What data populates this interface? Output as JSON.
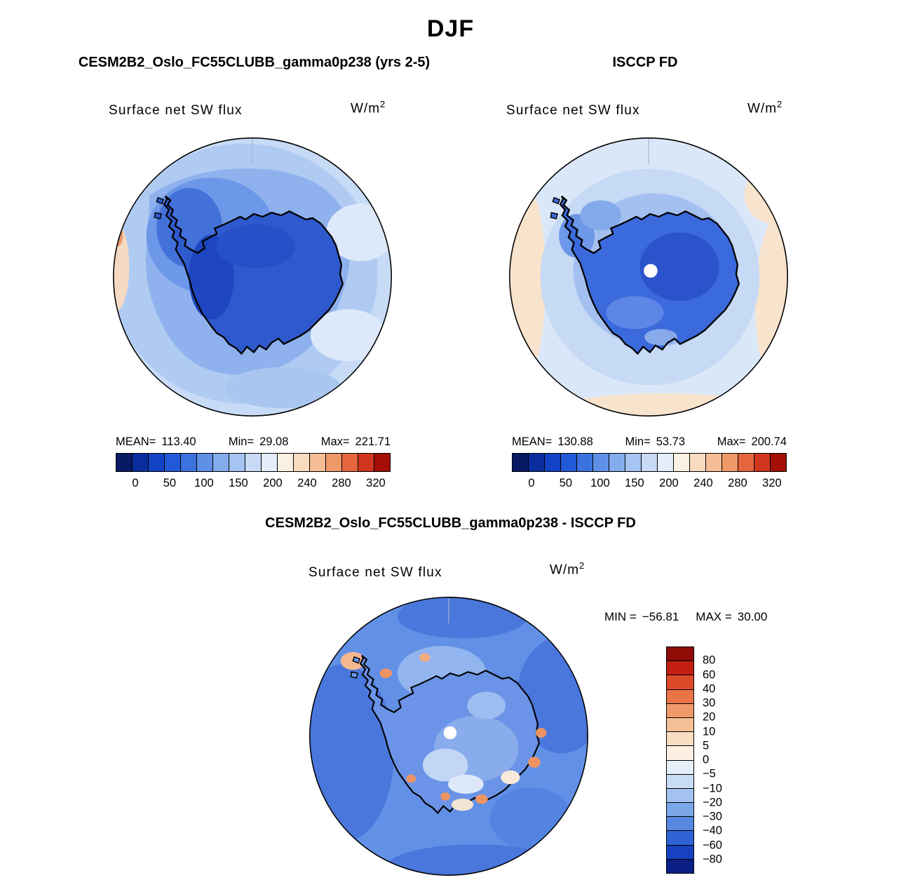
{
  "title": "DJF",
  "panels": [
    {
      "title": "CESM2B2_Oslo_FC55CLUBB_gamma0p238 (yrs 2-5)",
      "field_label": "Surface net SW flux",
      "units_base": "W/m",
      "units_exp": "2",
      "stats": {
        "mean_label": "MEAN=",
        "mean": "113.40",
        "min_label": "Min=",
        "min": "29.08",
        "max_label": "Max=",
        "max": "221.71"
      },
      "ticks": [
        "0",
        "50",
        "100",
        "150",
        "200",
        "240",
        "280",
        "320"
      ]
    },
    {
      "title": "ISCCP FD",
      "field_label": "Surface net SW flux",
      "units_base": "W/m",
      "units_exp": "2",
      "stats": {
        "mean_label": "MEAN=",
        "mean": "130.88",
        "min_label": "Min=",
        "min": "53.73",
        "max_label": "Max=",
        "max": "200.74"
      },
      "ticks": [
        "0",
        "50",
        "100",
        "150",
        "200",
        "240",
        "280",
        "320"
      ]
    }
  ],
  "diff": {
    "title": "CESM2B2_Oslo_FC55CLUBB_gamma0p238 - ISCCP FD",
    "field_label": "Surface net SW flux",
    "units_base": "W/m",
    "units_exp": "2",
    "min_label": "MIN =",
    "min": "−56.81",
    "max_label": "MAX =",
    "max": "30.00",
    "labels": [
      "80",
      "60",
      "40",
      "30",
      "20",
      "10",
      "5",
      "0",
      "−5",
      "−10",
      "−20",
      "−30",
      "−40",
      "−60",
      "−80"
    ]
  },
  "palettes": {
    "flux": [
      "#071a63",
      "#0a2d9e",
      "#1242c6",
      "#2159d8",
      "#3b72de",
      "#5e90e6",
      "#82acec",
      "#a6c4f1",
      "#c8daf6",
      "#e4eefa",
      "#fbf1e2",
      "#f9dcc0",
      "#f5bd96",
      "#ef9868",
      "#e5663e",
      "#d03520",
      "#a41008"
    ],
    "diff": [
      "#8e0b06",
      "#c21f12",
      "#dd4a2a",
      "#ea7347",
      "#f09a6b",
      "#f6c096",
      "#fadcc0",
      "#fdf0e2",
      "#e6f0fa",
      "#c9dcf5",
      "#a3c2ef",
      "#7ba6e8",
      "#5688e0",
      "#2f63d5",
      "#1641c0",
      "#0a1f86"
    ]
  },
  "chart_data": [
    {
      "type": "heatmap",
      "projection": "south_polar_stereographic",
      "season": "DJF",
      "title": "CESM2B2_Oslo_FC55CLUBB_gamma0p238 (yrs 2-5)",
      "field": "Surface net SW flux",
      "units": "W/m^2",
      "mean": 113.4,
      "min": 29.08,
      "max": 221.71,
      "colorbar_ticks": [
        0,
        50,
        100,
        150,
        200,
        240,
        280,
        320
      ],
      "legend_position": "bottom",
      "grid": false
    },
    {
      "type": "heatmap",
      "projection": "south_polar_stereographic",
      "season": "DJF",
      "title": "ISCCP FD",
      "field": "Surface net SW flux",
      "units": "W/m^2",
      "mean": 130.88,
      "min": 53.73,
      "max": 200.74,
      "colorbar_ticks": [
        0,
        50,
        100,
        150,
        200,
        240,
        280,
        320
      ],
      "legend_position": "bottom",
      "grid": false
    },
    {
      "type": "heatmap",
      "projection": "south_polar_stereographic",
      "season": "DJF",
      "title": "CESM2B2_Oslo_FC55CLUBB_gamma0p238 - ISCCP FD",
      "field": "Surface net SW flux",
      "units": "W/m^2",
      "min": -56.81,
      "max": 30.0,
      "colorbar_ticks": [
        80,
        60,
        40,
        30,
        20,
        10,
        5,
        0,
        -5,
        -10,
        -20,
        -30,
        -40,
        -60,
        -80
      ],
      "legend_position": "right",
      "grid": false
    }
  ]
}
